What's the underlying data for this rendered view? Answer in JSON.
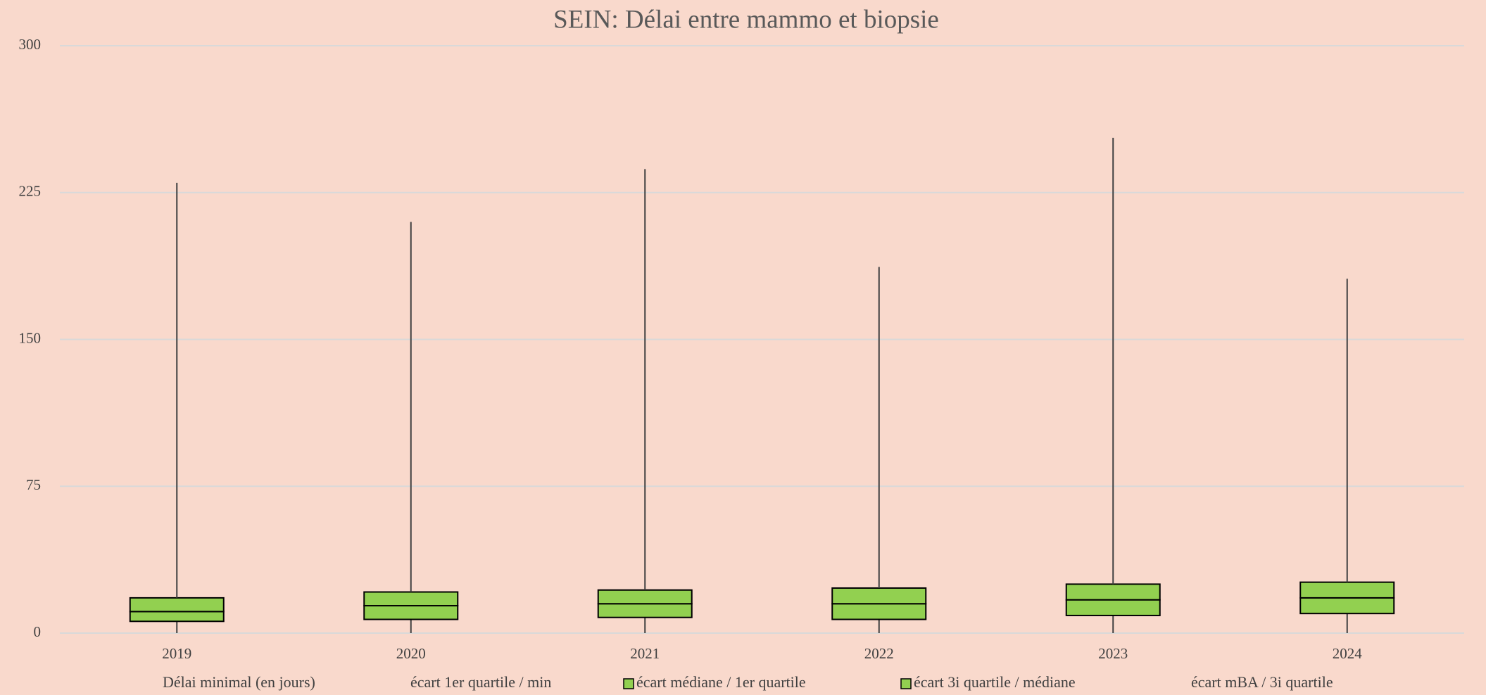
{
  "chart_data": {
    "type": "boxplot-stacked",
    "title": "SEIN: Délai entre mammo et biopsie",
    "categories": [
      "2019",
      "2020",
      "2021",
      "2022",
      "2023",
      "2024"
    ],
    "series": [
      {
        "name": "Délai minimal (en jours)",
        "color": "none",
        "values": [
          0,
          0,
          0,
          0,
          0,
          0
        ]
      },
      {
        "name": "écart 1er quartile / min",
        "color": "none",
        "values": [
          6,
          7,
          8,
          7,
          9,
          10
        ]
      },
      {
        "name": "écart médiane / 1er quartile",
        "color": "#92d050",
        "values": [
          5,
          7,
          7,
          8,
          8,
          8
        ]
      },
      {
        "name": "écart 3i quartile / médiane",
        "color": "#92d050",
        "values": [
          7,
          7,
          7,
          8,
          8,
          8
        ]
      },
      {
        "name": "écart mBA / 3i quartile",
        "color": "none",
        "values": [
          212,
          189,
          215,
          164,
          228,
          155
        ]
      }
    ],
    "ylim": [
      0,
      300
    ],
    "yticks": [
      0,
      75,
      150,
      225,
      300
    ],
    "grid": true,
    "legend": "bottom"
  }
}
